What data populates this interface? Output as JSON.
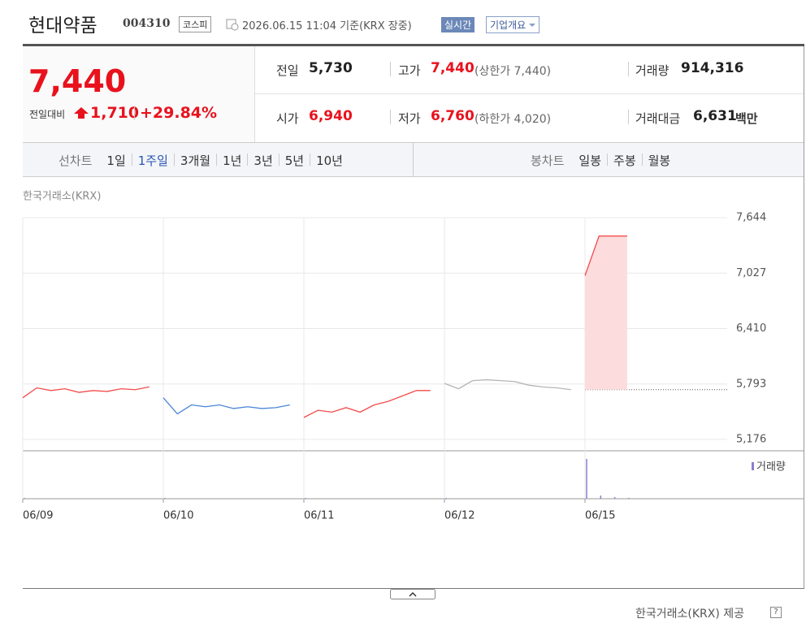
{
  "header": {
    "title": "현대약품",
    "code": "004310",
    "market": "코스피",
    "timestamp": "2026.06.15 11:04 기준(KRX 장중)",
    "realtime_button": "실시간",
    "company_button": "기업개요"
  },
  "quote": {
    "price": "7,440",
    "change_label": "전일대비",
    "change": "1,710",
    "change_rate": "+29.84%",
    "stats": [
      {
        "label": "전일",
        "value": "5,730"
      },
      {
        "label": "고가",
        "value": "7,440",
        "note": "(상한가 7,440)"
      },
      {
        "label": "거래량",
        "value": "914,316"
      },
      {
        "label": "시가",
        "value": "6,940"
      },
      {
        "label": "저가",
        "value": "6,760",
        "note": "(하한가 4,020)"
      },
      {
        "label": "거래대금",
        "value": "6,631",
        "unit": "백만"
      }
    ]
  },
  "tabs": {
    "line_label": "선차트",
    "line_periods": [
      "1일",
      "1주일",
      "3개월",
      "1년",
      "3년",
      "5년",
      "10년"
    ],
    "selected": 1,
    "candle_label": "봉차트",
    "candle_periods": [
      "일봉",
      "주봉",
      "월봉"
    ]
  },
  "chart_data": {
    "type": "line",
    "source": "한국거래소(KRX)",
    "categories": [
      "06/09",
      null,
      null,
      null,
      null,
      null,
      null,
      null,
      null,
      null,
      "06/10",
      null,
      null,
      null,
      null,
      null,
      null,
      null,
      null,
      null,
      "06/11",
      null,
      null,
      null,
      null,
      null,
      null,
      null,
      null,
      null,
      "06/12",
      null,
      null,
      null,
      null,
      null,
      null,
      null,
      null,
      null,
      "06/15",
      null,
      null,
      null,
      null,
      null,
      null,
      null,
      null,
      null
    ],
    "series": [
      {
        "color": "#f24b4b",
        "values": [
          5640,
          5750,
          5720,
          5740,
          5700,
          5720,
          5710,
          5740,
          5730,
          5760,
          null,
          null,
          null,
          null,
          null,
          null,
          null,
          null,
          null,
          null,
          5420,
          5500,
          5480,
          5530,
          5480,
          5560,
          5600,
          5660,
          5720,
          5720,
          null,
          null,
          null,
          null,
          null,
          null,
          null,
          null,
          null,
          null,
          null,
          null,
          null,
          null,
          null,
          null,
          null,
          null,
          null,
          null
        ]
      },
      {
        "color": "#4a86d8",
        "values": [
          null,
          null,
          null,
          null,
          null,
          null,
          null,
          null,
          null,
          null,
          5640,
          5460,
          5560,
          5540,
          5560,
          5520,
          5540,
          5520,
          5530,
          5560,
          null,
          null,
          null,
          null,
          null,
          null,
          null,
          null,
          null,
          null,
          null,
          null,
          null,
          null,
          null,
          null,
          null,
          null,
          null,
          null,
          null,
          null,
          null,
          null,
          null,
          null,
          null,
          null,
          null,
          null
        ]
      },
      {
        "color": "#b5b5b5",
        "values": [
          null,
          null,
          null,
          null,
          null,
          null,
          null,
          null,
          null,
          null,
          null,
          null,
          null,
          null,
          null,
          null,
          null,
          null,
          null,
          null,
          null,
          null,
          null,
          null,
          null,
          null,
          null,
          null,
          null,
          null,
          5800,
          5740,
          5830,
          5840,
          5830,
          5820,
          5780,
          5760,
          5750,
          5730,
          null,
          null,
          null,
          null,
          null,
          null,
          null,
          null,
          null,
          null
        ]
      },
      {
        "color": "#f24b4b",
        "fill": "#fcdcdc",
        "values": [
          null,
          null,
          null,
          null,
          null,
          null,
          null,
          null,
          null,
          null,
          null,
          null,
          null,
          null,
          null,
          null,
          null,
          null,
          null,
          null,
          null,
          null,
          null,
          null,
          null,
          null,
          null,
          null,
          null,
          null,
          null,
          null,
          null,
          null,
          null,
          null,
          null,
          null,
          null,
          null,
          7000,
          7440,
          7440,
          7440,
          null,
          null,
          null,
          null,
          null,
          null
        ]
      }
    ],
    "base_value": 5730,
    "ylim": [
      5176,
      7644
    ],
    "yticks": [
      {
        "value": 5176,
        "label": "5,176"
      },
      {
        "value": 5793,
        "label": "5,793"
      },
      {
        "value": 6410,
        "label": "6,410"
      },
      {
        "value": 7027,
        "label": "7,027"
      },
      {
        "value": 7644,
        "label": "7,644"
      }
    ],
    "grid": true,
    "volume": {
      "label": "거래량",
      "color": "#8a7fd0",
      "ylim": [
        0,
        50
      ],
      "values": [
        1,
        null,
        null,
        null,
        null,
        null,
        null,
        null,
        null,
        null,
        1,
        null,
        null,
        null,
        null,
        null,
        null,
        null,
        null,
        null,
        1,
        null,
        null,
        null,
        null,
        null,
        null,
        null,
        null,
        null,
        1,
        null,
        null,
        null,
        null,
        null,
        null,
        null,
        null,
        null,
        50,
        4,
        2,
        1,
        null,
        null,
        null,
        null,
        null,
        null
      ]
    }
  },
  "footer": {
    "source": "한국거래소(KRX) 제공",
    "help": "?"
  }
}
